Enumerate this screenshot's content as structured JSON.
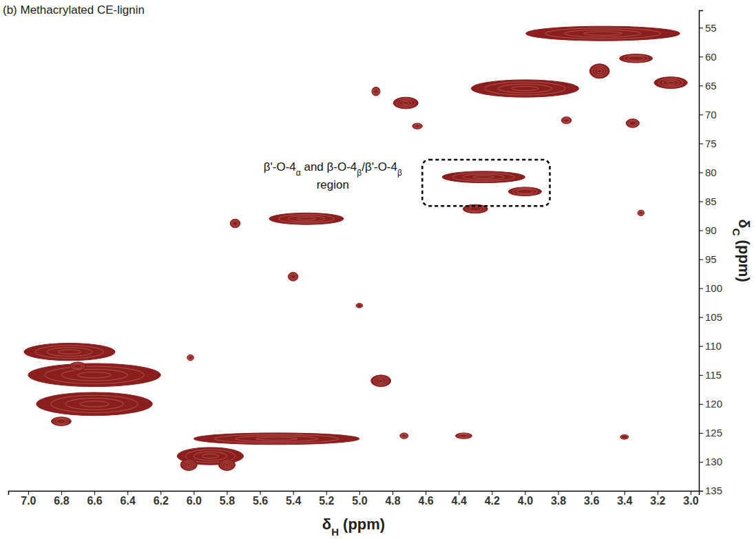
{
  "chart_data": {
    "type": "contour",
    "title": "(b) Methacrylated CE-lignin",
    "x_label": "δH (ppm)",
    "y_label": "δC (ppm)",
    "color": "#8b1e1e",
    "grid": false,
    "xlim": [
      7.12,
      2.95
    ],
    "ylim": [
      52,
      135
    ],
    "xticks": [
      {
        "value": 7,
        "label": "7.0"
      },
      6.8,
      6.6,
      6.4,
      6.2,
      {
        "value": 6,
        "label": "6.0"
      },
      5.8,
      5.6,
      5.4,
      5.2,
      {
        "value": 5,
        "label": "5.0"
      },
      4.8,
      4.6,
      4.4,
      4.2,
      {
        "value": 4,
        "label": "4.0"
      },
      3.8,
      3.6,
      3.4,
      3.2,
      {
        "value": 3,
        "label": "3.0"
      }
    ],
    "yticks": [
      55,
      60,
      65,
      70,
      75,
      80,
      85,
      90,
      95,
      100,
      105,
      110,
      115,
      120,
      125,
      130,
      135
    ],
    "x": [
      3.53,
      3.33,
      3.55,
      4.0,
      3.12,
      4.72,
      4.65,
      4.9,
      3.75,
      3.35,
      4.25,
      4.0,
      4.3,
      5.32,
      5.75,
      5.4,
      6.75,
      6.6,
      6.6,
      6.8,
      6.7,
      4.87,
      5.5,
      5.9,
      6.03,
      5.8,
      4.73,
      4.37,
      3.4,
      3.3,
      6.02,
      5.0
    ],
    "values": [
      56,
      60.3,
      62.5,
      65.5,
      64.5,
      68,
      72,
      66,
      71,
      71.5,
      80.8,
      83.3,
      86.3,
      88,
      88.8,
      98,
      111,
      115,
      120,
      123,
      113.5,
      116,
      126,
      129,
      130.5,
      130.5,
      125.5,
      125.5,
      125.7,
      87,
      112,
      103
    ],
    "x_width": [
      0.93,
      0.2,
      0.12,
      0.65,
      0.2,
      0.15,
      0.06,
      0.05,
      0.06,
      0.08,
      0.5,
      0.2,
      0.15,
      0.45,
      0.06,
      0.06,
      0.55,
      0.8,
      0.7,
      0.12,
      0.1,
      0.12,
      1.0,
      0.4,
      0.1,
      0.1,
      0.05,
      0.1,
      0.05,
      0.04,
      0.04,
      0.04
    ],
    "y_width": [
      2.5,
      1.5,
      2.5,
      3,
      2,
      2,
      1,
      1.5,
      1.2,
      1.5,
      2,
      1.5,
      1.5,
      2,
      1.5,
      1.5,
      3,
      4,
      4,
      1.5,
      1.5,
      2,
      2,
      3,
      2,
      2,
      1,
      1,
      0.8,
      1,
      1,
      0.8
    ],
    "annotation": [
      "β'-O-4α and β-O-4β/β'-O-4β",
      "region"
    ],
    "annotation_box": {
      "x": [
        4.62,
        3.85
      ],
      "y": [
        77.8,
        85.8
      ]
    }
  }
}
